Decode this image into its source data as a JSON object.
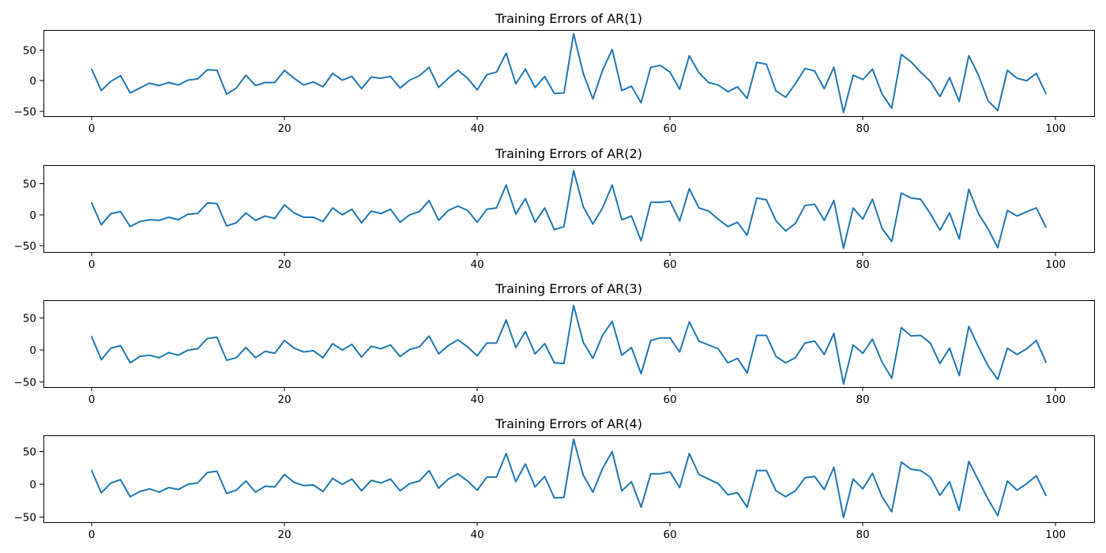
{
  "colors": {
    "series": "#1f77b4",
    "axes": "#000000",
    "background": "#ffffff"
  },
  "chart_data": [
    {
      "type": "line",
      "title": "Training Errors of AR(1)",
      "xlabel": "",
      "ylabel": "",
      "xlim": [
        -5,
        104
      ],
      "ylim": [
        -58,
        83
      ],
      "xticks": [
        0,
        20,
        40,
        60,
        80,
        100
      ],
      "yticks": [
        -50,
        0,
        50
      ],
      "grid": false,
      "series": [
        {
          "values": [
            19,
            -16,
            -1,
            8,
            -20,
            -12,
            -4,
            -8,
            -3,
            -7,
            1,
            3,
            18,
            17,
            -22,
            -12,
            9,
            -8,
            -3,
            -3,
            17,
            4,
            -7,
            -2,
            -10,
            12,
            1,
            7,
            -13,
            6,
            4,
            7,
            -12,
            1,
            8,
            22,
            -11,
            4,
            17,
            4,
            -15,
            10,
            14,
            45,
            -5,
            19,
            -11,
            7,
            -21,
            -20,
            77,
            12,
            -30,
            17,
            51,
            -16,
            -9,
            -36,
            22,
            25,
            14,
            -14,
            41,
            13,
            -3,
            -7,
            -18,
            -10,
            -29,
            30,
            27,
            -17,
            -27,
            -5,
            20,
            16,
            -13,
            22,
            -52,
            9,
            2,
            19,
            -22,
            -45,
            43,
            31,
            14,
            -1,
            -26,
            5,
            -34,
            41,
            9,
            -33,
            -49,
            17,
            4,
            0,
            12,
            -21
          ]
        }
      ]
    },
    {
      "type": "line",
      "title": "Training Errors of AR(2)",
      "xlabel": "",
      "ylabel": "",
      "xlim": [
        -5,
        104
      ],
      "ylim": [
        -60,
        80
      ],
      "xticks": [
        0,
        20,
        40,
        60,
        80,
        100
      ],
      "yticks": [
        -50,
        0,
        50
      ],
      "grid": false,
      "series": [
        {
          "values": [
            19,
            -16,
            2,
            5,
            -19,
            -11,
            -8,
            -9,
            -4,
            -8,
            1,
            2,
            19,
            18,
            -18,
            -13,
            3,
            -9,
            -2,
            -6,
            16,
            3,
            -4,
            -4,
            -11,
            11,
            0,
            9,
            -13,
            6,
            2,
            9,
            -12,
            0,
            5,
            23,
            -9,
            7,
            14,
            7,
            -12,
            9,
            11,
            48,
            1,
            26,
            -12,
            11,
            -24,
            -19,
            71,
            13,
            -15,
            11,
            48,
            -8,
            -2,
            -42,
            20,
            20,
            22,
            -10,
            42,
            11,
            6,
            -7,
            -19,
            -12,
            -33,
            27,
            24,
            -10,
            -26,
            -14,
            15,
            17,
            -9,
            23,
            -54,
            11,
            -7,
            25,
            -22,
            -43,
            35,
            27,
            25,
            2,
            -25,
            3,
            -39,
            41,
            2,
            -23,
            -53,
            7,
            -2,
            5,
            11,
            -20
          ]
        }
      ]
    },
    {
      "type": "line",
      "title": "Training Errors of AR(3)",
      "xlabel": "",
      "ylabel": "",
      "xlim": [
        -5,
        104
      ],
      "ylim": [
        -58,
        78
      ],
      "xticks": [
        0,
        20,
        40,
        60,
        80,
        100
      ],
      "yticks": [
        -50,
        0,
        50
      ],
      "grid": false,
      "series": [
        {
          "values": [
            21,
            -15,
            3,
            7,
            -20,
            -10,
            -8,
            -12,
            -4,
            -8,
            0,
            2,
            18,
            20,
            -16,
            -12,
            4,
            -12,
            -2,
            -5,
            15,
            3,
            -3,
            -1,
            -12,
            10,
            0,
            9,
            -11,
            6,
            2,
            8,
            -10,
            1,
            5,
            22,
            -6,
            7,
            16,
            5,
            -9,
            11,
            11,
            47,
            4,
            29,
            -6,
            10,
            -20,
            -21,
            70,
            12,
            -13,
            23,
            45,
            -8,
            4,
            -37,
            15,
            19,
            19,
            -3,
            44,
            14,
            8,
            2,
            -20,
            -13,
            -36,
            23,
            23,
            -10,
            -20,
            -12,
            11,
            14,
            -7,
            26,
            -53,
            8,
            -5,
            17,
            -19,
            -44,
            35,
            22,
            23,
            11,
            -21,
            3,
            -40,
            37,
            5,
            -25,
            -46,
            3,
            -7,
            2,
            15,
            -19
          ]
        }
      ]
    },
    {
      "type": "line",
      "title": "Training Errors of AR(4)",
      "xlabel": "",
      "ylabel": "",
      "xlim": [
        -5,
        104
      ],
      "ylim": [
        -58,
        75
      ],
      "xticks": [
        0,
        20,
        40,
        60,
        80,
        100
      ],
      "yticks": [
        -50,
        0,
        50
      ],
      "grid": false,
      "series": [
        {
          "values": [
            21,
            -13,
            2,
            7,
            -19,
            -11,
            -7,
            -12,
            -5,
            -8,
            0,
            2,
            18,
            20,
            -14,
            -9,
            5,
            -12,
            -3,
            -4,
            15,
            3,
            -2,
            -1,
            -11,
            9,
            0,
            8,
            -10,
            6,
            2,
            8,
            -10,
            1,
            5,
            21,
            -6,
            8,
            16,
            5,
            -9,
            11,
            11,
            47,
            4,
            31,
            -4,
            12,
            -21,
            -20,
            69,
            14,
            -12,
            24,
            50,
            -10,
            4,
            -35,
            16,
            16,
            19,
            -5,
            47,
            15,
            8,
            1,
            -16,
            -13,
            -35,
            21,
            21,
            -10,
            -19,
            -10,
            10,
            12,
            -8,
            26,
            -51,
            8,
            -7,
            17,
            -19,
            -42,
            34,
            23,
            21,
            11,
            -17,
            4,
            -40,
            35,
            6,
            -23,
            -48,
            5,
            -9,
            1,
            13,
            -17
          ]
        }
      ]
    }
  ]
}
